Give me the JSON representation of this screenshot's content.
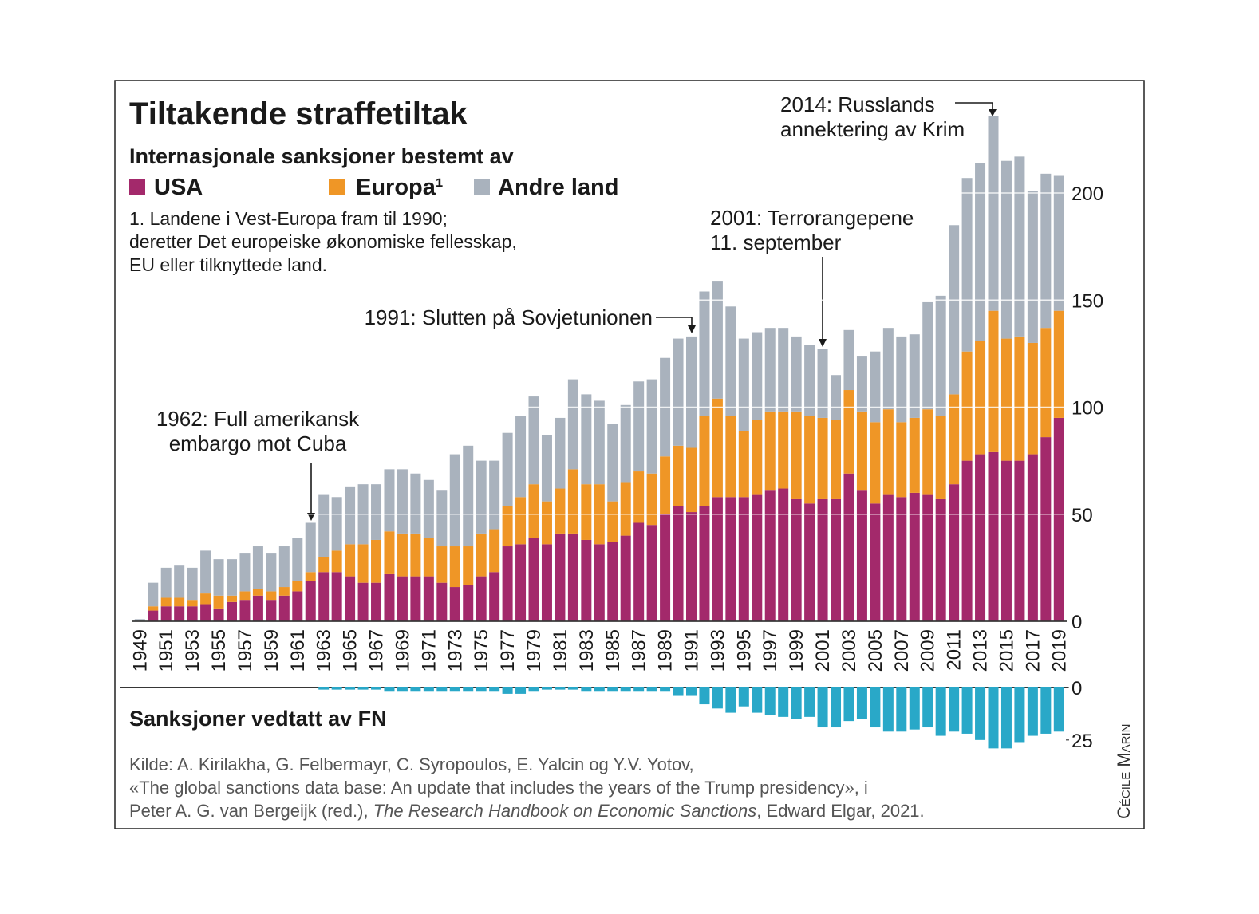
{
  "chart_data": [
    {
      "type": "bar",
      "stacked": true,
      "title": "Tiltakende straffetiltak",
      "subtitle": "Internasjonale sanksjoner bestemt av",
      "footnote": [
        "1. Landene i Vest-Europa fram til 1990;",
        "deretter Det europeiske økonomiske fellesskap,",
        "EU eller tilknyttede land."
      ],
      "annotations": [
        {
          "lines": [
            "2014: Russlands",
            "annektering av Krim"
          ]
        },
        {
          "lines": [
            "2001: Terrorangepene",
            "11. september"
          ]
        },
        {
          "lines": [
            "1991: Slutten på Sovjetunionen"
          ]
        },
        {
          "lines": [
            "1962: Full amerikansk",
            "embargo mot Cuba"
          ]
        }
      ],
      "categories": [
        "1949",
        null,
        "1951",
        null,
        "1953",
        null,
        "1955",
        null,
        "1957",
        null,
        "1959",
        null,
        "1961",
        null,
        "1963",
        null,
        "1965",
        null,
        "1967",
        null,
        "1969",
        null,
        "1971",
        null,
        "1973",
        null,
        "1975",
        null,
        "1977",
        null,
        "1979",
        null,
        "1981",
        null,
        "1983",
        null,
        "1985",
        null,
        "1987",
        null,
        "1989",
        null,
        "1991",
        null,
        "1993",
        null,
        "1995",
        null,
        "1997",
        null,
        "1999",
        null,
        "2001",
        null,
        "2003",
        null,
        "2005",
        null,
        "2007",
        null,
        "2009",
        null,
        "2011",
        null,
        "2013",
        null,
        "2015",
        null,
        "2017",
        null,
        "2019"
      ],
      "series": [
        {
          "name": "USA",
          "color": "#a3296b",
          "values": [
            0,
            5,
            7,
            7,
            7,
            8,
            6,
            9,
            10,
            12,
            10,
            12,
            14,
            19,
            23,
            23,
            21,
            18,
            18,
            22,
            21,
            21,
            21,
            18,
            16,
            17,
            21,
            23,
            35,
            36,
            39,
            36,
            41,
            41,
            38,
            36,
            37,
            40,
            46,
            45,
            50,
            54,
            51,
            54,
            58,
            58,
            58,
            59,
            61,
            62,
            57,
            55,
            57,
            57,
            69,
            61,
            55,
            59,
            58,
            60,
            59,
            57,
            64,
            75,
            78,
            79,
            75,
            75,
            78,
            86,
            95
          ]
        },
        {
          "name": "Europa¹",
          "color": "#ef9626",
          "values": [
            0,
            2,
            4,
            4,
            3,
            5,
            6,
            3,
            4,
            3,
            4,
            4,
            5,
            4,
            7,
            10,
            15,
            18,
            20,
            20,
            20,
            20,
            18,
            17,
            19,
            18,
            20,
            20,
            19,
            22,
            25,
            20,
            21,
            30,
            26,
            28,
            19,
            25,
            24,
            24,
            27,
            28,
            30,
            42,
            46,
            38,
            31,
            35,
            37,
            36,
            41,
            41,
            38,
            37,
            39,
            37,
            38,
            40,
            35,
            35,
            40,
            39,
            42,
            51,
            53,
            66,
            57,
            58,
            52,
            51,
            50
          ]
        },
        {
          "name": "Andre land",
          "color": "#a9b2bd",
          "values": [
            1,
            11,
            14,
            15,
            15,
            20,
            17,
            17,
            18,
            20,
            18,
            19,
            20,
            23,
            29,
            25,
            27,
            28,
            26,
            29,
            30,
            28,
            27,
            26,
            43,
            47,
            34,
            32,
            34,
            38,
            41,
            31,
            33,
            42,
            42,
            39,
            36,
            36,
            42,
            44,
            46,
            50,
            52,
            58,
            55,
            51,
            43,
            41,
            39,
            39,
            35,
            33,
            32,
            21,
            28,
            26,
            33,
            38,
            40,
            39,
            50,
            56,
            79,
            81,
            83,
            91,
            83,
            84,
            71,
            72,
            63
          ]
        }
      ],
      "ylim": [
        0,
        250
      ],
      "yticks": [
        0,
        50,
        100,
        150,
        200
      ],
      "grid": true
    },
    {
      "type": "bar",
      "title": "Sanksjoner vedtatt av FN",
      "categories": [
        "1949",
        "1950",
        "1951",
        "1952",
        "1953",
        "1954",
        "1955",
        "1956",
        "1957",
        "1958",
        "1959",
        "1960",
        "1961",
        "1962",
        "1963",
        "1964",
        "1965",
        "1966",
        "1967",
        "1968",
        "1969",
        "1970",
        "1971",
        "1972",
        "1973",
        "1974",
        "1975",
        "1976",
        "1977",
        "1978",
        "1979",
        "1980",
        "1981",
        "1982",
        "1983",
        "1984",
        "1985",
        "1986",
        "1987",
        "1988",
        "1989",
        "1990",
        "1991",
        "1992",
        "1993",
        "1994",
        "1995",
        "1996",
        "1997",
        "1998",
        "1999",
        "2000",
        "2001",
        "2002",
        "2003",
        "2004",
        "2005",
        "2006",
        "2007",
        "2008",
        "2009",
        "2010",
        "2011",
        "2012",
        "2013",
        "2014",
        "2015",
        "2016",
        "2017",
        "2018",
        "2019"
      ],
      "series": [
        {
          "color": "#29a8c8",
          "values": [
            null,
            null,
            null,
            null,
            null,
            null,
            null,
            null,
            null,
            null,
            null,
            null,
            null,
            null,
            1,
            1,
            1,
            1,
            1,
            2,
            2,
            2,
            2,
            2,
            2,
            2,
            2,
            2,
            3,
            3,
            2,
            1,
            1,
            1,
            2,
            2,
            2,
            2,
            2,
            2,
            2,
            4,
            4,
            8,
            10,
            12,
            9,
            12,
            13,
            14,
            15,
            14,
            19,
            19,
            16,
            15,
            19,
            21,
            21,
            20,
            19,
            23,
            21,
            22,
            25,
            29,
            29,
            26,
            23,
            22,
            21
          ]
        }
      ],
      "ylim": [
        0,
        30
      ],
      "yticks": [
        0,
        25
      ]
    }
  ],
  "source": {
    "lines": [
      "Kilde: A. Kirilakha, G. Felbermayr, C. Syropoulos, E. Yalcin og Y.V. Yotov,",
      "«The global sanctions data base: An update that includes the years of the Trump presidency», i"
    ],
    "last": [
      "Peter A. G. van Bergeijk (red.), ",
      "The Research Handbook on Economic Sanctions",
      ", Edward Elgar, 2021."
    ]
  },
  "credit": "Cécile Marin"
}
